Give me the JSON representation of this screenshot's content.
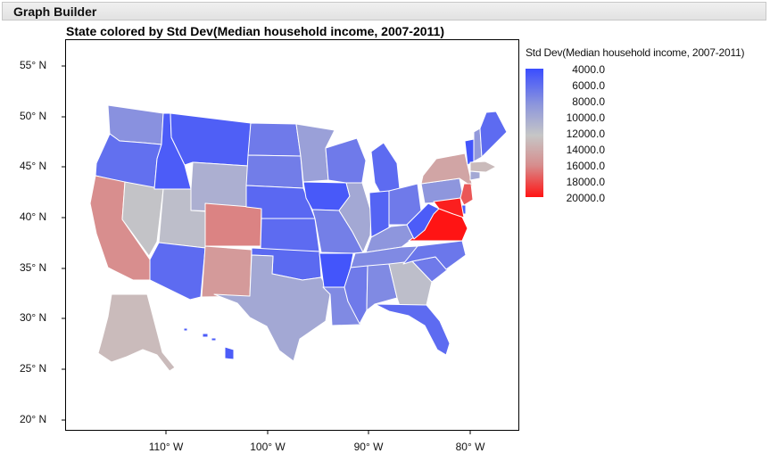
{
  "header": {
    "title": "Graph Builder"
  },
  "chart_data": {
    "type": "map",
    "title": "State colored by Std Dev(Median household income, 2007-2011)",
    "y_ticks": [
      "55° N",
      "50° N",
      "45° N",
      "40° N",
      "35° N",
      "30° N",
      "25° N",
      "20° N"
    ],
    "x_ticks": [
      "110° W",
      "100° W",
      "90° W",
      "80° W"
    ],
    "legend": {
      "title": "Std Dev(Median household income, 2007-2011)",
      "labels": [
        "4000.0",
        "6000.0",
        "8000.0",
        "10000.0",
        "12000.0",
        "14000.0",
        "16000.0",
        "18000.0",
        "20000.0"
      ],
      "color_low": "#3a4dff",
      "color_mid": "#c6c6c6",
      "color_high": "#ff1414"
    },
    "states": [
      {
        "name": "Washington",
        "value": 8500
      },
      {
        "name": "Oregon",
        "value": 6300
      },
      {
        "name": "California",
        "value": 14500
      },
      {
        "name": "Nevada",
        "value": 11800
      },
      {
        "name": "Idaho",
        "value": 5000
      },
      {
        "name": "Montana",
        "value": 5200
      },
      {
        "name": "Wyoming",
        "value": 10500
      },
      {
        "name": "Utah",
        "value": 11500
      },
      {
        "name": "Arizona",
        "value": 6000
      },
      {
        "name": "Colorado",
        "value": 15000
      },
      {
        "name": "New Mexico",
        "value": 14000
      },
      {
        "name": "North Dakota",
        "value": 7000
      },
      {
        "name": "South Dakota",
        "value": 7200
      },
      {
        "name": "Nebraska",
        "value": 5800
      },
      {
        "name": "Kansas",
        "value": 6000
      },
      {
        "name": "Oklahoma",
        "value": 5900
      },
      {
        "name": "Texas",
        "value": 10000
      },
      {
        "name": "Minnesota",
        "value": 9500
      },
      {
        "name": "Iowa",
        "value": 4800
      },
      {
        "name": "Missouri",
        "value": 7300
      },
      {
        "name": "Arkansas",
        "value": 4500
      },
      {
        "name": "Louisiana",
        "value": 8000
      },
      {
        "name": "Wisconsin",
        "value": 7000
      },
      {
        "name": "Illinois",
        "value": 10000
      },
      {
        "name": "Michigan",
        "value": 6000
      },
      {
        "name": "Indiana",
        "value": 5500
      },
      {
        "name": "Ohio",
        "value": 7000
      },
      {
        "name": "Kentucky",
        "value": 8800
      },
      {
        "name": "Tennessee",
        "value": 8000
      },
      {
        "name": "Mississippi",
        "value": 7000
      },
      {
        "name": "Alabama",
        "value": 8000
      },
      {
        "name": "Georgia",
        "value": 11500
      },
      {
        "name": "Florida",
        "value": 6000
      },
      {
        "name": "South Carolina",
        "value": 7000
      },
      {
        "name": "North Carolina",
        "value": 6800
      },
      {
        "name": "Virginia",
        "value": 20000
      },
      {
        "name": "West Virginia",
        "value": 5000
      },
      {
        "name": "Pennsylvania",
        "value": 8800
      },
      {
        "name": "New York",
        "value": 13500
      },
      {
        "name": "Vermont",
        "value": 4500
      },
      {
        "name": "New Hampshire",
        "value": 9000
      },
      {
        "name": "Maine",
        "value": 6000
      },
      {
        "name": "Massachusetts",
        "value": 12500
      },
      {
        "name": "Connecticut",
        "value": 10000
      },
      {
        "name": "New Jersey",
        "value": 17000
      },
      {
        "name": "Delaware",
        "value": 5000
      },
      {
        "name": "Maryland",
        "value": 19500
      },
      {
        "name": "Alaska",
        "value": 12500
      },
      {
        "name": "Hawaii",
        "value": 5000
      }
    ]
  }
}
